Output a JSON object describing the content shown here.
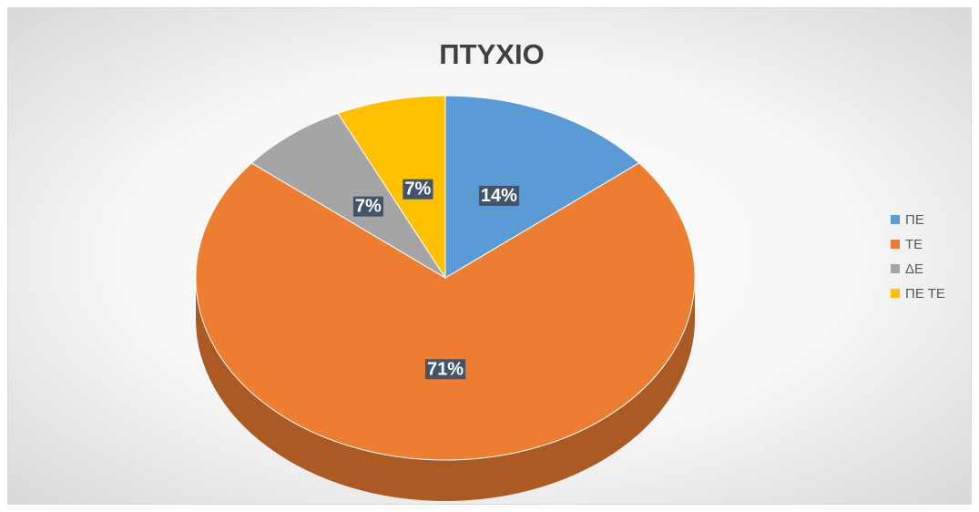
{
  "chart_data": {
    "type": "pie",
    "title": "ΠΤΥΧΙΟ",
    "categories": [
      "ΠΕ",
      "ΤΕ",
      "ΔΕ",
      "ΠΕ ΤΕ"
    ],
    "values": [
      14,
      71,
      7,
      7
    ],
    "value_labels": [
      "14%",
      "71%",
      "7%",
      "7%"
    ],
    "colors": [
      "#5b9bd5",
      "#ed7d31",
      "#a5a5a5",
      "#ffc000"
    ],
    "legend": "right"
  }
}
